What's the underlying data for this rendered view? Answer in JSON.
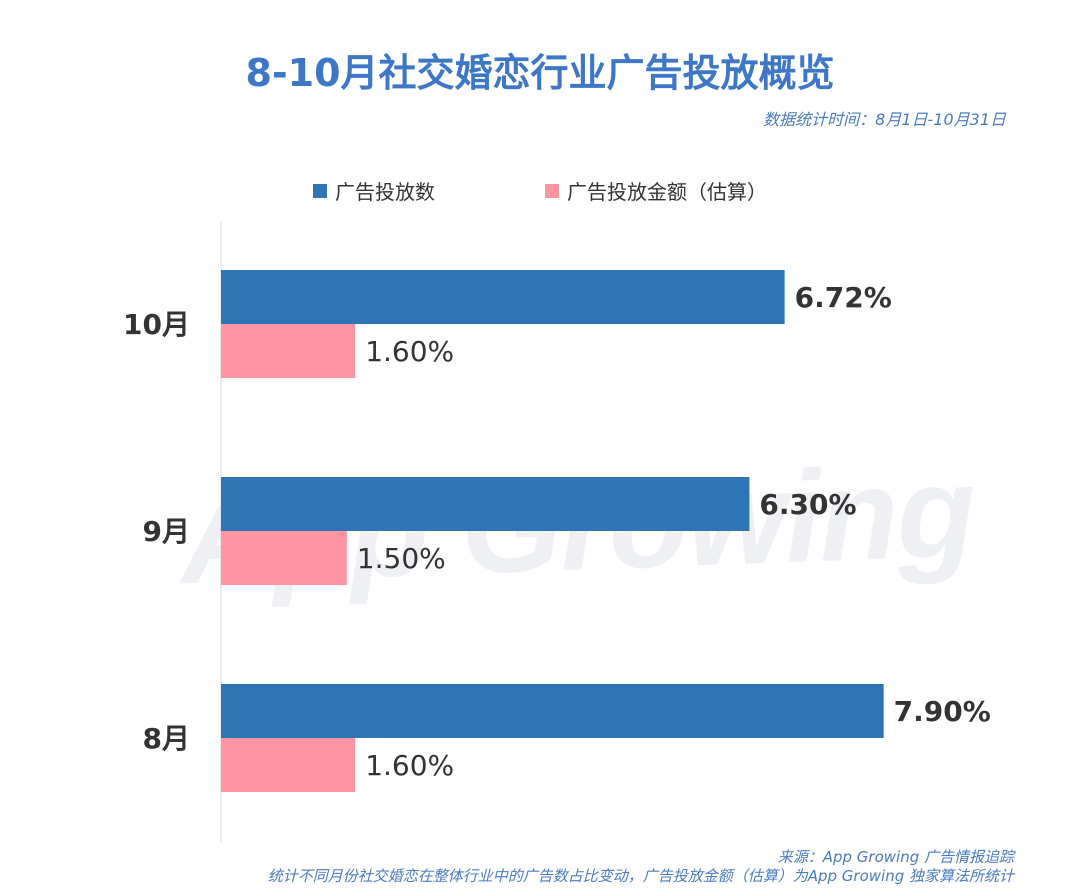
{
  "header": {
    "title": "8-10月社交婚恋行业广告投放概览",
    "date_range": "数据统计时间：8月1日-10月31日"
  },
  "watermark": "App Growing",
  "footer": {
    "source": "来源：App Growing 广告情报追踪",
    "note": "统计不同月份社交婚恋在整体行业中的广告数占比变动，广告投放金额（估算）为App Growing 独家算法所统计"
  },
  "chart_data": {
    "type": "bar",
    "orientation": "horizontal",
    "title": "8-10月社交婚恋行业广告投放概览",
    "categories": [
      "10月",
      "9月",
      "8月"
    ],
    "series": [
      {
        "name": "广告投放数",
        "values": [
          6.72,
          6.3,
          7.9
        ],
        "labels": [
          "6.72%",
          "6.30%",
          "7.90%"
        ],
        "color": "#2e75b6"
      },
      {
        "name": "广告投放金额（估算）",
        "values": [
          1.6,
          1.5,
          1.6
        ],
        "labels": [
          "1.60%",
          "1.50%",
          "1.60%"
        ],
        "color": "#ff94a3"
      }
    ],
    "xlim": [
      0,
      8.0
    ],
    "grid": false,
    "legend_position": "top"
  }
}
